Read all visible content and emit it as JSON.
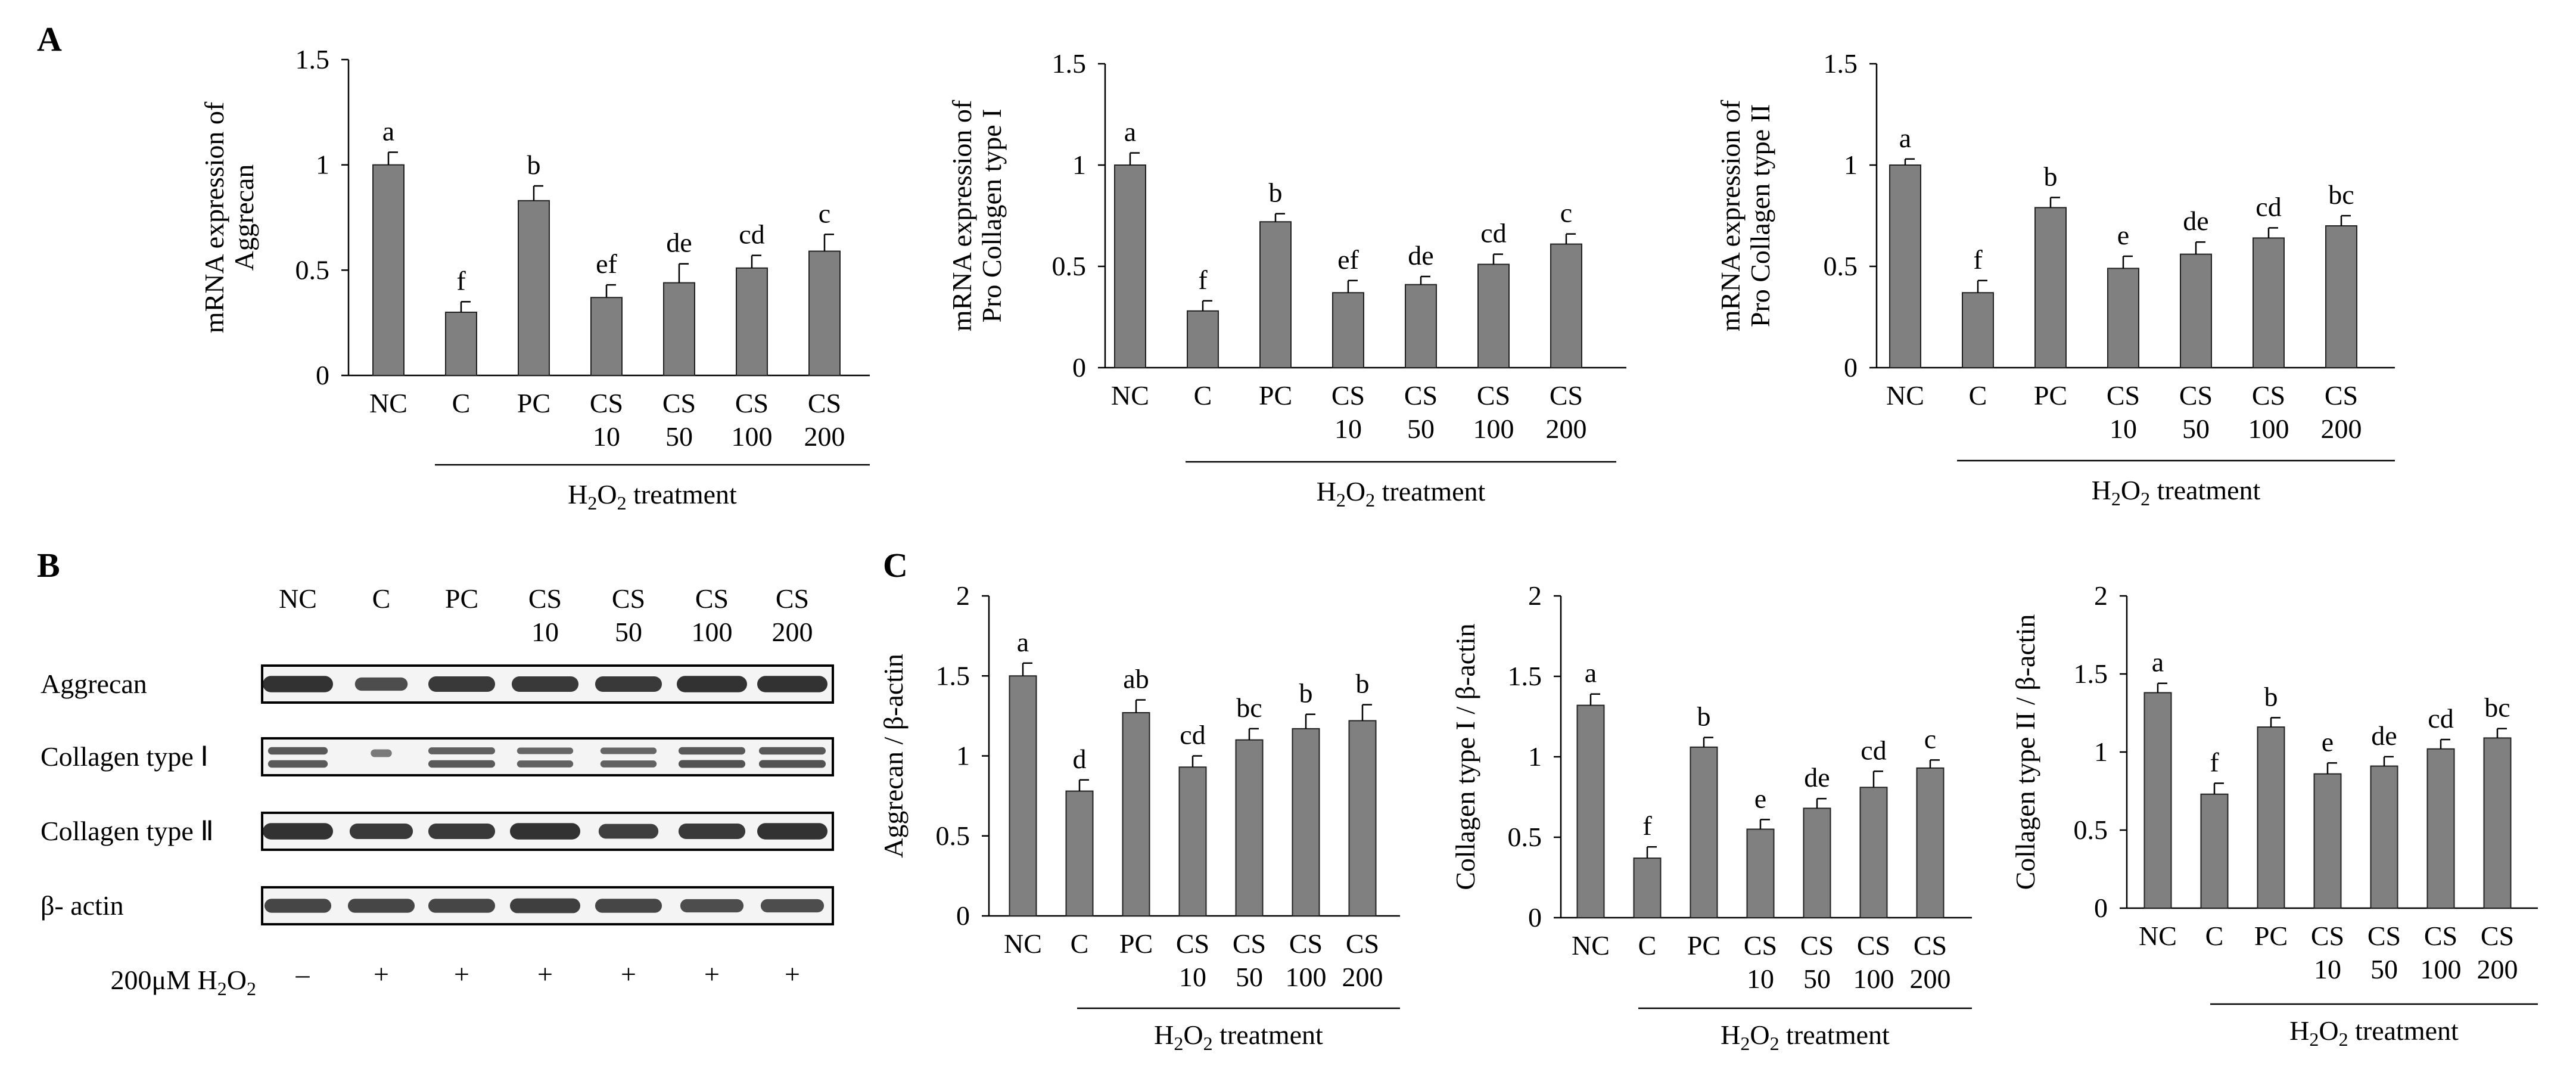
{
  "figure": {
    "panel_labels": {
      "a": "A",
      "b": "B",
      "c": "C"
    },
    "treatment_label": {
      "prefix": "H",
      "sub1": "2",
      "mid": "O",
      "sub2": "2",
      "suffix": " treatment"
    }
  },
  "chart_data": [
    {
      "id": "A1",
      "type": "bar",
      "ylabel_lines": [
        "mRNA expression of",
        "Aggrecan"
      ],
      "ylim": [
        0,
        1.5
      ],
      "yticks": [
        0,
        0.5,
        1,
        1.5
      ],
      "ytick_labels": [
        "0",
        "0.5",
        "1",
        "1.5"
      ],
      "categories": [
        [
          "NC"
        ],
        [
          "C"
        ],
        [
          "PC"
        ],
        [
          "CS",
          "10"
        ],
        [
          "CS",
          "50"
        ],
        [
          "CS",
          "100"
        ],
        [
          "CS",
          "200"
        ]
      ],
      "values": [
        1.0,
        0.3,
        0.83,
        0.37,
        0.44,
        0.51,
        0.59
      ],
      "errors": [
        0.06,
        0.05,
        0.07,
        0.06,
        0.09,
        0.06,
        0.08
      ],
      "significance": [
        "a",
        "f",
        "b",
        "ef",
        "de",
        "cd",
        "c"
      ]
    },
    {
      "id": "A2",
      "type": "bar",
      "ylabel_lines": [
        "mRNA expression of",
        "Pro Collagen type I"
      ],
      "ylim": [
        0,
        1.5
      ],
      "yticks": [
        0,
        0.5,
        1,
        1.5
      ],
      "ytick_labels": [
        "0",
        "0.5",
        "1",
        "1.5"
      ],
      "categories": [
        [
          "NC"
        ],
        [
          "C"
        ],
        [
          "PC"
        ],
        [
          "CS",
          "10"
        ],
        [
          "CS",
          "50"
        ],
        [
          "CS",
          "100"
        ],
        [
          "CS",
          "200"
        ]
      ],
      "values": [
        1.0,
        0.28,
        0.72,
        0.37,
        0.41,
        0.51,
        0.61
      ],
      "errors": [
        0.06,
        0.05,
        0.04,
        0.06,
        0.04,
        0.05,
        0.05
      ],
      "significance": [
        "a",
        "f",
        "b",
        "ef",
        "de",
        "cd",
        "c"
      ]
    },
    {
      "id": "A3",
      "type": "bar",
      "ylabel_lines": [
        "mRNA expression of",
        "Pro Collagen type II"
      ],
      "ylim": [
        0,
        1.5
      ],
      "yticks": [
        0,
        0.5,
        1,
        1.5
      ],
      "ytick_labels": [
        "0",
        "0.5",
        "1",
        "1.5"
      ],
      "categories": [
        [
          "NC"
        ],
        [
          "C"
        ],
        [
          "PC"
        ],
        [
          "CS",
          "10"
        ],
        [
          "CS",
          "50"
        ],
        [
          "CS",
          "100"
        ],
        [
          "CS",
          "200"
        ]
      ],
      "values": [
        1.0,
        0.37,
        0.79,
        0.49,
        0.56,
        0.64,
        0.7
      ],
      "errors": [
        0.03,
        0.06,
        0.05,
        0.06,
        0.06,
        0.05,
        0.05
      ],
      "significance": [
        "a",
        "f",
        "b",
        "e",
        "de",
        "cd",
        "bc"
      ]
    },
    {
      "id": "C1",
      "type": "bar",
      "ylabel_lines": [
        "Aggrecan / β-actin"
      ],
      "ylim": [
        0,
        2
      ],
      "yticks": [
        0,
        0.5,
        1,
        1.5,
        2
      ],
      "ytick_labels": [
        "0",
        "0.5",
        "1",
        "1.5",
        "2"
      ],
      "categories": [
        [
          "NC"
        ],
        [
          "C"
        ],
        [
          "PC"
        ],
        [
          "CS",
          "10"
        ],
        [
          "CS",
          "50"
        ],
        [
          "CS",
          "100"
        ],
        [
          "CS",
          "200"
        ]
      ],
      "values": [
        1.5,
        0.78,
        1.27,
        0.93,
        1.1,
        1.17,
        1.22
      ],
      "errors": [
        0.08,
        0.07,
        0.08,
        0.07,
        0.07,
        0.09,
        0.1
      ],
      "significance": [
        "a",
        "d",
        "ab",
        "cd",
        "bc",
        "b",
        "b"
      ]
    },
    {
      "id": "C2",
      "type": "bar",
      "ylabel_lines": [
        "Collagen type I / β-actin"
      ],
      "ylim": [
        0,
        2
      ],
      "yticks": [
        0,
        0.5,
        1,
        1.5,
        2
      ],
      "ytick_labels": [
        "0",
        "0.5",
        "1",
        "1.5",
        "2"
      ],
      "categories": [
        [
          "NC"
        ],
        [
          "C"
        ],
        [
          "PC"
        ],
        [
          "CS",
          "10"
        ],
        [
          "CS",
          "50"
        ],
        [
          "CS",
          "100"
        ],
        [
          "CS",
          "200"
        ]
      ],
      "values": [
        1.32,
        0.37,
        1.06,
        0.55,
        0.68,
        0.81,
        0.93
      ],
      "errors": [
        0.07,
        0.07,
        0.06,
        0.06,
        0.06,
        0.1,
        0.05
      ],
      "significance": [
        "a",
        "f",
        "b",
        "e",
        "de",
        "cd",
        "c"
      ]
    },
    {
      "id": "C3",
      "type": "bar",
      "ylabel_lines": [
        "Collagen type II / β-actin"
      ],
      "ylim": [
        0,
        2
      ],
      "yticks": [
        0,
        0.5,
        1,
        1.5,
        2
      ],
      "ytick_labels": [
        "0",
        "0.5",
        "1",
        "1.5",
        "2"
      ],
      "categories": [
        [
          "NC"
        ],
        [
          "C"
        ],
        [
          "PC"
        ],
        [
          "CS",
          "10"
        ],
        [
          "CS",
          "50"
        ],
        [
          "CS",
          "100"
        ],
        [
          "CS",
          "200"
        ]
      ],
      "values": [
        1.38,
        0.73,
        1.16,
        0.86,
        0.91,
        1.02,
        1.09
      ],
      "errors": [
        0.06,
        0.07,
        0.06,
        0.07,
        0.06,
        0.06,
        0.06
      ],
      "significance": [
        "a",
        "f",
        "b",
        "e",
        "de",
        "cd",
        "bc"
      ]
    }
  ],
  "western_blot": {
    "lane_headers": [
      [
        "NC"
      ],
      [
        "C"
      ],
      [
        "PC"
      ],
      [
        "CS",
        "10"
      ],
      [
        "CS",
        "50"
      ],
      [
        "CS",
        "100"
      ],
      [
        "CS",
        "200"
      ]
    ],
    "rows": [
      "Aggrecan",
      "Collagen type Ⅰ",
      "Collagen type Ⅱ",
      "β- actin"
    ],
    "treatment_row_label": {
      "prefix": "200μM H",
      "sub1": "2",
      "mid": "O",
      "sub2": "2"
    },
    "treatment_signs": [
      "–",
      "+",
      "+",
      "+",
      "+",
      "+",
      "+"
    ]
  }
}
